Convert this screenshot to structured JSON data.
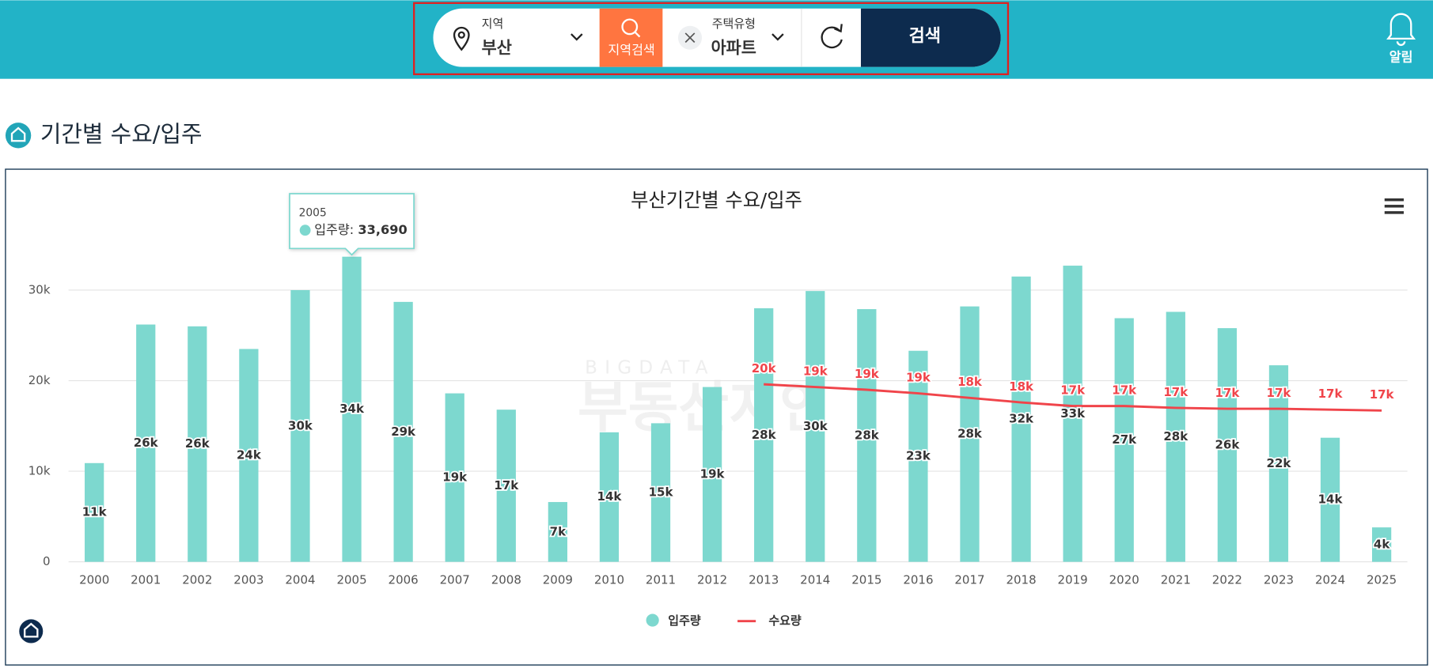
{
  "search_bar": {
    "region_label": "지역",
    "region": "부산",
    "region_search": "지역검색",
    "house_type_label": "주택유형",
    "house_type": "아파트",
    "search": "검색"
  },
  "alarm": "알림",
  "section_title": "기간별 수요/입주",
  "chart_data": {
    "type": "bar+line",
    "title": "부산기간별 수요/입주",
    "watermark": [
      "BIGDATA",
      "부동산지인"
    ],
    "categories": [
      "2000",
      "2001",
      "2002",
      "2003",
      "2004",
      "2005",
      "2006",
      "2007",
      "2008",
      "2009",
      "2010",
      "2011",
      "2012",
      "2013",
      "2014",
      "2015",
      "2016",
      "2017",
      "2018",
      "2019",
      "2020",
      "2021",
      "2022",
      "2023",
      "2024",
      "2025"
    ],
    "series": [
      {
        "name": "입주량",
        "color": "#7dd8cf",
        "type": "bar",
        "values": [
          10900,
          26200,
          26000,
          23500,
          30000,
          33690,
          28700,
          18600,
          16800,
          6600,
          14300,
          15300,
          19300,
          28000,
          29900,
          27900,
          23300,
          28200,
          31500,
          32700,
          26900,
          27600,
          25800,
          21700,
          13700,
          3800
        ],
        "value_labels": [
          "11k",
          "26k",
          "26k",
          "24k",
          "30k",
          "34k",
          "29k",
          "19k",
          "17k",
          "7k",
          "14k",
          "15k",
          "19k",
          "28k",
          "30k",
          "28k",
          "23k",
          "28k",
          "32k",
          "33k",
          "27k",
          "28k",
          "26k",
          "22k",
          "14k",
          "4k"
        ]
      },
      {
        "name": "수요량",
        "color": "#f0444a",
        "type": "line",
        "values": [
          null,
          null,
          null,
          null,
          null,
          null,
          null,
          null,
          null,
          null,
          null,
          null,
          null,
          19600,
          19300,
          19000,
          18600,
          18100,
          17600,
          17200,
          17200,
          17000,
          16900,
          16900,
          16800,
          16700
        ],
        "value_labels": [
          null,
          null,
          null,
          null,
          null,
          null,
          null,
          null,
          null,
          null,
          null,
          null,
          null,
          "20k",
          "19k",
          "19k",
          "19k",
          "18k",
          "18k",
          "17k",
          "17k",
          "17k",
          "17k",
          "17k",
          "17k",
          "17k"
        ]
      }
    ],
    "ylim": [
      0,
      37000
    ],
    "yticks": [
      0,
      {
        "value": 10000,
        "label": "10k"
      },
      {
        "value": 20000,
        "label": "20k"
      },
      {
        "value": 30000,
        "label": "30k"
      }
    ],
    "grid": true,
    "legend": "bottom",
    "tooltip": {
      "category": "2005",
      "series": "입주량",
      "value": 33690,
      "value_label": "33,690"
    }
  }
}
